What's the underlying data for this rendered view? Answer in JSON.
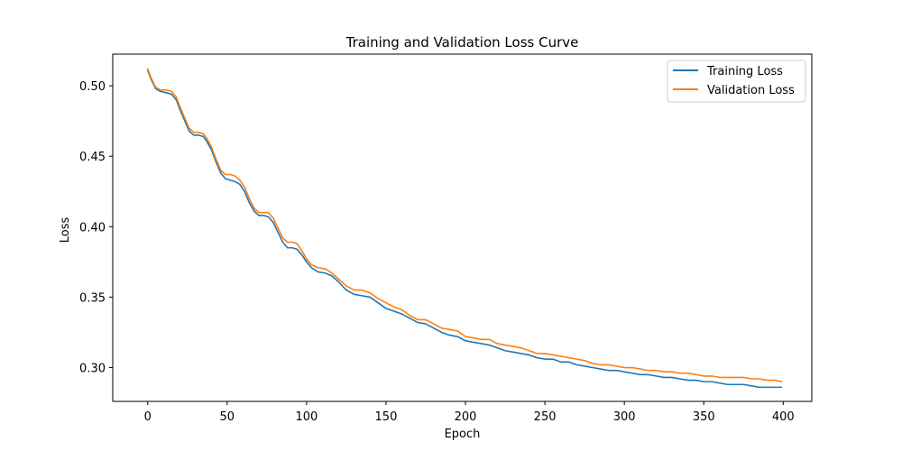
{
  "chart_data": {
    "type": "line",
    "title": "Training and Validation Loss Curve",
    "xlabel": "Epoch",
    "ylabel": "Loss",
    "xlim": [
      -22,
      418
    ],
    "ylim": [
      0.276,
      0.5225
    ],
    "xticks": [
      0,
      50,
      100,
      150,
      200,
      250,
      300,
      350,
      400
    ],
    "yticks": [
      0.3,
      0.35,
      0.4,
      0.45,
      0.5
    ],
    "ytick_labels": [
      "0.30",
      "0.35",
      "0.40",
      "0.45",
      "0.50"
    ],
    "grid": false,
    "legend_position": "upper right",
    "series": [
      {
        "name": "Training Loss",
        "color": "#1f77b4",
        "points": [
          [
            0,
            0.511
          ],
          [
            2,
            0.505
          ],
          [
            5,
            0.498
          ],
          [
            8,
            0.496
          ],
          [
            12,
            0.495
          ],
          [
            15,
            0.494
          ],
          [
            18,
            0.49
          ],
          [
            20,
            0.484
          ],
          [
            23,
            0.476
          ],
          [
            26,
            0.468
          ],
          [
            29,
            0.465
          ],
          [
            32,
            0.465
          ],
          [
            35,
            0.464
          ],
          [
            37,
            0.461
          ],
          [
            40,
            0.455
          ],
          [
            43,
            0.446
          ],
          [
            46,
            0.438
          ],
          [
            49,
            0.434
          ],
          [
            52,
            0.433
          ],
          [
            55,
            0.432
          ],
          [
            58,
            0.43
          ],
          [
            61,
            0.425
          ],
          [
            64,
            0.417
          ],
          [
            67,
            0.411
          ],
          [
            70,
            0.408
          ],
          [
            73,
            0.408
          ],
          [
            76,
            0.407
          ],
          [
            79,
            0.403
          ],
          [
            82,
            0.396
          ],
          [
            85,
            0.389
          ],
          [
            88,
            0.385
          ],
          [
            91,
            0.385
          ],
          [
            94,
            0.384
          ],
          [
            97,
            0.38
          ],
          [
            100,
            0.375
          ],
          [
            103,
            0.371
          ],
          [
            107,
            0.368
          ],
          [
            112,
            0.367
          ],
          [
            116,
            0.365
          ],
          [
            120,
            0.361
          ],
          [
            125,
            0.355
          ],
          [
            130,
            0.352
          ],
          [
            135,
            0.351
          ],
          [
            140,
            0.35
          ],
          [
            145,
            0.346
          ],
          [
            150,
            0.342
          ],
          [
            155,
            0.34
          ],
          [
            160,
            0.338
          ],
          [
            165,
            0.335
          ],
          [
            170,
            0.332
          ],
          [
            175,
            0.331
          ],
          [
            180,
            0.328
          ],
          [
            185,
            0.325
          ],
          [
            190,
            0.323
          ],
          [
            195,
            0.322
          ],
          [
            200,
            0.319
          ],
          [
            205,
            0.318
          ],
          [
            210,
            0.317
          ],
          [
            215,
            0.316
          ],
          [
            220,
            0.314
          ],
          [
            225,
            0.312
          ],
          [
            230,
            0.311
          ],
          [
            235,
            0.31
          ],
          [
            240,
            0.309
          ],
          [
            245,
            0.307
          ],
          [
            250,
            0.306
          ],
          [
            255,
            0.306
          ],
          [
            260,
            0.304
          ],
          [
            265,
            0.304
          ],
          [
            270,
            0.302
          ],
          [
            275,
            0.301
          ],
          [
            280,
            0.3
          ],
          [
            285,
            0.299
          ],
          [
            290,
            0.298
          ],
          [
            295,
            0.298
          ],
          [
            300,
            0.297
          ],
          [
            305,
            0.296
          ],
          [
            310,
            0.295
          ],
          [
            315,
            0.295
          ],
          [
            320,
            0.294
          ],
          [
            325,
            0.293
          ],
          [
            330,
            0.293
          ],
          [
            335,
            0.292
          ],
          [
            340,
            0.291
          ],
          [
            345,
            0.291
          ],
          [
            350,
            0.29
          ],
          [
            355,
            0.29
          ],
          [
            360,
            0.289
          ],
          [
            365,
            0.288
          ],
          [
            370,
            0.288
          ],
          [
            375,
            0.288
          ],
          [
            380,
            0.287
          ],
          [
            385,
            0.286
          ],
          [
            390,
            0.286
          ],
          [
            395,
            0.286
          ],
          [
            399,
            0.286
          ]
        ]
      },
      {
        "name": "Validation Loss",
        "color": "#ff7f0e",
        "points": [
          [
            0,
            0.512
          ],
          [
            2,
            0.506
          ],
          [
            5,
            0.499
          ],
          [
            8,
            0.497
          ],
          [
            12,
            0.497
          ],
          [
            15,
            0.496
          ],
          [
            18,
            0.492
          ],
          [
            20,
            0.486
          ],
          [
            23,
            0.478
          ],
          [
            26,
            0.47
          ],
          [
            29,
            0.467
          ],
          [
            32,
            0.467
          ],
          [
            35,
            0.466
          ],
          [
            37,
            0.463
          ],
          [
            40,
            0.457
          ],
          [
            43,
            0.448
          ],
          [
            46,
            0.44
          ],
          [
            49,
            0.437
          ],
          [
            52,
            0.437
          ],
          [
            55,
            0.436
          ],
          [
            58,
            0.433
          ],
          [
            61,
            0.428
          ],
          [
            64,
            0.42
          ],
          [
            67,
            0.413
          ],
          [
            70,
            0.41
          ],
          [
            73,
            0.41
          ],
          [
            76,
            0.41
          ],
          [
            79,
            0.406
          ],
          [
            82,
            0.399
          ],
          [
            85,
            0.392
          ],
          [
            88,
            0.389
          ],
          [
            91,
            0.389
          ],
          [
            94,
            0.388
          ],
          [
            97,
            0.383
          ],
          [
            100,
            0.377
          ],
          [
            103,
            0.373
          ],
          [
            107,
            0.371
          ],
          [
            112,
            0.37
          ],
          [
            116,
            0.367
          ],
          [
            120,
            0.363
          ],
          [
            125,
            0.358
          ],
          [
            130,
            0.355
          ],
          [
            135,
            0.355
          ],
          [
            140,
            0.353
          ],
          [
            145,
            0.349
          ],
          [
            150,
            0.346
          ],
          [
            155,
            0.343
          ],
          [
            160,
            0.341
          ],
          [
            165,
            0.337
          ],
          [
            170,
            0.334
          ],
          [
            175,
            0.334
          ],
          [
            180,
            0.331
          ],
          [
            185,
            0.328
          ],
          [
            190,
            0.327
          ],
          [
            195,
            0.326
          ],
          [
            200,
            0.322
          ],
          [
            205,
            0.321
          ],
          [
            210,
            0.32
          ],
          [
            215,
            0.32
          ],
          [
            220,
            0.317
          ],
          [
            225,
            0.316
          ],
          [
            230,
            0.315
          ],
          [
            235,
            0.314
          ],
          [
            240,
            0.312
          ],
          [
            245,
            0.31
          ],
          [
            250,
            0.31
          ],
          [
            255,
            0.309
          ],
          [
            260,
            0.308
          ],
          [
            265,
            0.307
          ],
          [
            270,
            0.306
          ],
          [
            275,
            0.305
          ],
          [
            280,
            0.303
          ],
          [
            285,
            0.302
          ],
          [
            290,
            0.302
          ],
          [
            295,
            0.301
          ],
          [
            300,
            0.3
          ],
          [
            305,
            0.3
          ],
          [
            310,
            0.299
          ],
          [
            315,
            0.298
          ],
          [
            320,
            0.298
          ],
          [
            325,
            0.297
          ],
          [
            330,
            0.297
          ],
          [
            335,
            0.296
          ],
          [
            340,
            0.296
          ],
          [
            345,
            0.295
          ],
          [
            350,
            0.294
          ],
          [
            355,
            0.294
          ],
          [
            360,
            0.293
          ],
          [
            365,
            0.293
          ],
          [
            370,
            0.293
          ],
          [
            375,
            0.293
          ],
          [
            380,
            0.292
          ],
          [
            385,
            0.292
          ],
          [
            390,
            0.291
          ],
          [
            395,
            0.291
          ],
          [
            399,
            0.29
          ]
        ]
      }
    ]
  }
}
